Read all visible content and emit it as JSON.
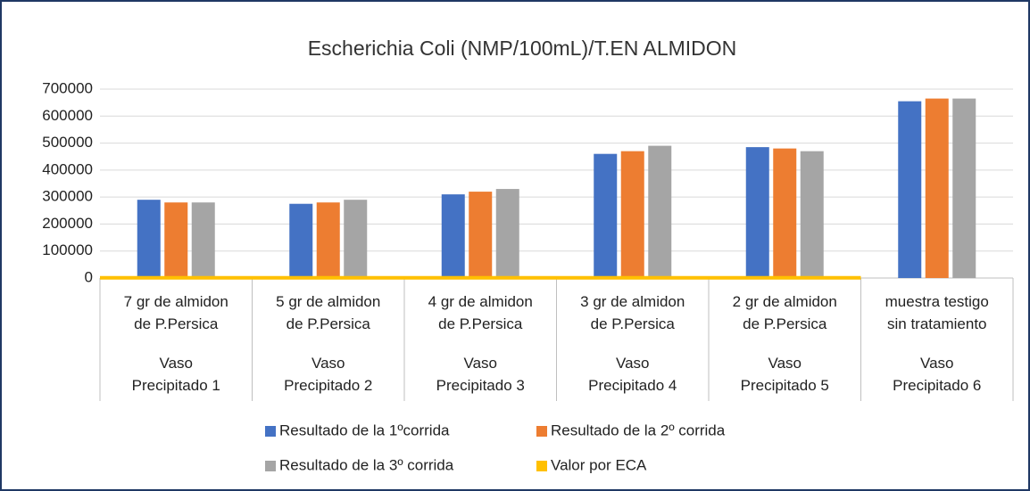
{
  "chart_data": {
    "type": "bar",
    "title": "Escherichia Coli (NMP/100mL)/T.EN ALMIDON",
    "categories": [
      "7 gr de almidon\nde P.Persica",
      "5 gr de almidon\nde P.Persica",
      "4 gr de almidon\nde P.Persica",
      "3 gr de almidon\nde P.Persica",
      "2 gr de almidon\nde P.Persica",
      "muestra testigo\nsin tratamiento"
    ],
    "groups": [
      "Vaso\nPrecipitado 1",
      "Vaso\nPrecipitado 2",
      "Vaso\nPrecipitado 3",
      "Vaso\nPrecipitado 4",
      "Vaso\nPrecipitado 5",
      "Vaso\nPrecipitado 6"
    ],
    "series": [
      {
        "name": "Resultado de la 1ºcorrida",
        "color": "#4472c4",
        "values": [
          290000,
          275000,
          310000,
          460000,
          485000,
          655000
        ]
      },
      {
        "name": "Resultado de la 2º corrida",
        "color": "#ed7d31",
        "values": [
          280000,
          280000,
          320000,
          470000,
          480000,
          665000
        ]
      },
      {
        "name": "Resultado de la 3º corrida",
        "color": "#a5a5a5",
        "values": [
          280000,
          290000,
          330000,
          490000,
          470000,
          665000
        ]
      },
      {
        "name": "Valor por ECA",
        "color": "#ffc000",
        "type": "line",
        "values": [
          1000,
          1000,
          1000,
          1000,
          1000,
          1000
        ]
      }
    ],
    "ylim": [
      0,
      700000
    ],
    "yticks": [
      0,
      100000,
      200000,
      300000,
      400000,
      500000,
      600000,
      700000
    ],
    "grid": true,
    "legend": "bottom"
  }
}
